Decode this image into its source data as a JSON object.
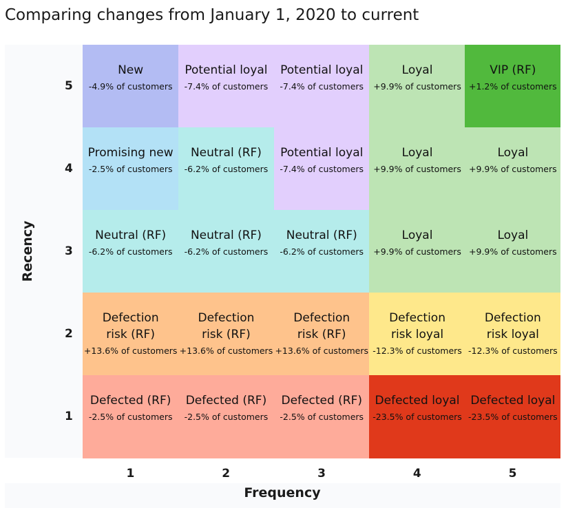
{
  "title": "Comparing changes from January 1, 2020 to current",
  "chart_data": {
    "type": "heatmap",
    "title": "Comparing changes from January 1, 2020 to current",
    "xlabel": "Frequency",
    "ylabel": "Recency",
    "x_ticks": [
      "1",
      "2",
      "3",
      "4",
      "5"
    ],
    "y_ticks": [
      "5",
      "4",
      "3",
      "2",
      "1"
    ],
    "cells": [
      {
        "recency": 5,
        "frequency": 1,
        "segment": "New",
        "change": "-4.9% of customers",
        "value": -4.9,
        "color": "#b3bcf3"
      },
      {
        "recency": 5,
        "frequency": 2,
        "segment": "Potential loyal",
        "change": "-7.4% of customers",
        "value": -7.4,
        "color": "#e2cffd"
      },
      {
        "recency": 5,
        "frequency": 3,
        "segment": "Potential loyal",
        "change": "-7.4% of customers",
        "value": -7.4,
        "color": "#e2cffd"
      },
      {
        "recency": 5,
        "frequency": 4,
        "segment": "Loyal",
        "change": "+9.9% of customers",
        "value": 9.9,
        "color": "#bde4b4"
      },
      {
        "recency": 5,
        "frequency": 5,
        "segment": "VIP (RF)",
        "change": "+1.2% of customers",
        "value": 1.2,
        "color": "#51b93d"
      },
      {
        "recency": 4,
        "frequency": 1,
        "segment": "Promising new",
        "change": "-2.5% of customers",
        "value": -2.5,
        "color": "#b3e1f6"
      },
      {
        "recency": 4,
        "frequency": 2,
        "segment": "Neutral (RF)",
        "change": "-6.2% of customers",
        "value": -6.2,
        "color": "#b5eceb"
      },
      {
        "recency": 4,
        "frequency": 3,
        "segment": "Potential loyal",
        "change": "-7.4% of customers",
        "value": -7.4,
        "color": "#e2cffd"
      },
      {
        "recency": 4,
        "frequency": 4,
        "segment": "Loyal",
        "change": "+9.9% of customers",
        "value": 9.9,
        "color": "#bde4b4"
      },
      {
        "recency": 4,
        "frequency": 5,
        "segment": "Loyal",
        "change": "+9.9% of customers",
        "value": 9.9,
        "color": "#bde4b4"
      },
      {
        "recency": 3,
        "frequency": 1,
        "segment": "Neutral (RF)",
        "change": "-6.2% of customers",
        "value": -6.2,
        "color": "#b5eceb"
      },
      {
        "recency": 3,
        "frequency": 2,
        "segment": "Neutral (RF)",
        "change": "-6.2% of customers",
        "value": -6.2,
        "color": "#b5eceb"
      },
      {
        "recency": 3,
        "frequency": 3,
        "segment": "Neutral (RF)",
        "change": "-6.2% of customers",
        "value": -6.2,
        "color": "#b5eceb"
      },
      {
        "recency": 3,
        "frequency": 4,
        "segment": "Loyal",
        "change": "+9.9% of customers",
        "value": 9.9,
        "color": "#bde4b4"
      },
      {
        "recency": 3,
        "frequency": 5,
        "segment": "Loyal",
        "change": "+9.9% of customers",
        "value": 9.9,
        "color": "#bde4b4"
      },
      {
        "recency": 2,
        "frequency": 1,
        "segment": "Defection risk (RF)",
        "change": "+13.6% of customers",
        "value": 13.6,
        "color": "#fec38c"
      },
      {
        "recency": 2,
        "frequency": 2,
        "segment": "Defection risk (RF)",
        "change": "+13.6% of customers",
        "value": 13.6,
        "color": "#fec38c"
      },
      {
        "recency": 2,
        "frequency": 3,
        "segment": "Defection risk (RF)",
        "change": "+13.6% of customers",
        "value": 13.6,
        "color": "#fec38c"
      },
      {
        "recency": 2,
        "frequency": 4,
        "segment": "Defection risk loyal",
        "change": "-12.3% of customers",
        "value": -12.3,
        "color": "#fee88b"
      },
      {
        "recency": 2,
        "frequency": 5,
        "segment": "Defection risk loyal",
        "change": "-12.3% of customers",
        "value": -12.3,
        "color": "#fee88b"
      },
      {
        "recency": 1,
        "frequency": 1,
        "segment": "Defected (RF)",
        "change": "-2.5% of customers",
        "value": -2.5,
        "color": "#feab9a"
      },
      {
        "recency": 1,
        "frequency": 2,
        "segment": "Defected (RF)",
        "change": "-2.5% of customers",
        "value": -2.5,
        "color": "#feab9a"
      },
      {
        "recency": 1,
        "frequency": 3,
        "segment": "Defected (RF)",
        "change": "-2.5% of customers",
        "value": -2.5,
        "color": "#feab9a"
      },
      {
        "recency": 1,
        "frequency": 4,
        "segment": "Defected loyal",
        "change": "-23.5% of customers",
        "value": -23.5,
        "color": "#e0391b"
      },
      {
        "recency": 1,
        "frequency": 5,
        "segment": "Defected loyal",
        "change": "-23.5% of customers",
        "value": -23.5,
        "color": "#e0391b"
      }
    ]
  }
}
